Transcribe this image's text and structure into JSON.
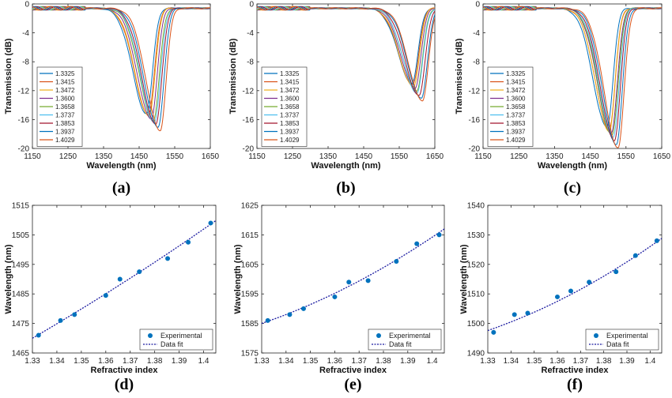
{
  "colors": [
    "#0072BD",
    "#D95319",
    "#EDB120",
    "#7E2F8E",
    "#77AC30",
    "#4DBEEE",
    "#A2142F",
    "#0072BD",
    "#D95319"
  ],
  "chart_data": [
    {
      "panel": "(a)",
      "type": "line",
      "xlabel": "Wavelength (nm)",
      "ylabel": "Transmission (dB)",
      "xlim": [
        1150,
        1650
      ],
      "ylim": [
        -20,
        0
      ],
      "xticks": [
        1150,
        1250,
        1350,
        1450,
        1550,
        1650
      ],
      "yticks": [
        0,
        -4,
        -8,
        -12,
        -16,
        -20
      ],
      "legend_position": "left",
      "series": [
        {
          "name": "1.3325",
          "min_wavelength": 1471,
          "min_db": -14.6
        },
        {
          "name": "1.3415",
          "min_wavelength": 1476,
          "min_db": -14.8
        },
        {
          "name": "1.3472",
          "min_wavelength": 1478,
          "min_db": -15.0
        },
        {
          "name": "1.3600",
          "min_wavelength": 1484,
          "min_db": -15.3
        },
        {
          "name": "1.3658",
          "min_wavelength": 1490,
          "min_db": -15.5
        },
        {
          "name": "1.3737",
          "min_wavelength": 1493,
          "min_db": -15.8
        },
        {
          "name": "1.3853",
          "min_wavelength": 1497,
          "min_db": -16.1
        },
        {
          "name": "1.3937",
          "min_wavelength": 1503,
          "min_db": -16.5
        },
        {
          "name": "1.4029",
          "min_wavelength": 1509,
          "min_db": -16.9
        }
      ]
    },
    {
      "panel": "(b)",
      "type": "line",
      "xlabel": "Wavelength (nm)",
      "ylabel": "Transmission (dB)",
      "xlim": [
        1150,
        1650
      ],
      "ylim": [
        -20,
        0
      ],
      "xticks": [
        1150,
        1250,
        1350,
        1450,
        1550,
        1650
      ],
      "yticks": [
        0,
        -4,
        -8,
        -12,
        -16,
        -20
      ],
      "legend_position": "left",
      "series": [
        {
          "name": "1.3325",
          "min_wavelength": 1586,
          "min_db": -10.4
        },
        {
          "name": "1.3415",
          "min_wavelength": 1588,
          "min_db": -10.6
        },
        {
          "name": "1.3472",
          "min_wavelength": 1590,
          "min_db": -10.9
        },
        {
          "name": "1.3600",
          "min_wavelength": 1594,
          "min_db": -11.1
        },
        {
          "name": "1.3658",
          "min_wavelength": 1599,
          "min_db": -11.4
        },
        {
          "name": "1.3737",
          "min_wavelength": 1600,
          "min_db": -11.7
        },
        {
          "name": "1.3853",
          "min_wavelength": 1606,
          "min_db": -12.1
        },
        {
          "name": "1.3937",
          "min_wavelength": 1612,
          "min_db": -12.5
        },
        {
          "name": "1.4029",
          "min_wavelength": 1615,
          "min_db": -12.8
        }
      ]
    },
    {
      "panel": "(c)",
      "type": "line",
      "xlabel": "Wavelength (nm)",
      "ylabel": "Transmission (dB)",
      "xlim": [
        1150,
        1650
      ],
      "ylim": [
        -20,
        0
      ],
      "xticks": [
        1150,
        1250,
        1350,
        1450,
        1550,
        1650
      ],
      "yticks": [
        0,
        -4,
        -8,
        -12,
        -16,
        -20
      ],
      "legend_position": "left",
      "series": [
        {
          "name": "1.3325",
          "min_wavelength": 1497,
          "min_db": -16.5
        },
        {
          "name": "1.3415",
          "min_wavelength": 1503,
          "min_db": -16.8
        },
        {
          "name": "1.3472",
          "min_wavelength": 1503.5,
          "min_db": -17.0
        },
        {
          "name": "1.3600",
          "min_wavelength": 1509,
          "min_db": -17.3
        },
        {
          "name": "1.3658",
          "min_wavelength": 1511,
          "min_db": -17.6
        },
        {
          "name": "1.3737",
          "min_wavelength": 1514,
          "min_db": -17.9
        },
        {
          "name": "1.3853",
          "min_wavelength": 1517.5,
          "min_db": -18.3
        },
        {
          "name": "1.3937",
          "min_wavelength": 1523,
          "min_db": -18.8
        },
        {
          "name": "1.4029",
          "min_wavelength": 1528,
          "min_db": -19.3
        }
      ]
    },
    {
      "panel": "(d)",
      "type": "scatter",
      "xlabel": "Refractive index",
      "ylabel": "Wavelength (nm)",
      "xlim": [
        1.33,
        1.405
      ],
      "ylim": [
        1465,
        1515
      ],
      "xticks": [
        1.33,
        1.34,
        1.35,
        1.36,
        1.37,
        1.38,
        1.39,
        1.4
      ],
      "yticks": [
        1465,
        1475,
        1485,
        1495,
        1505,
        1515
      ],
      "legend_position": "bottom-right",
      "series": [
        {
          "name": "Experimental",
          "x": [
            1.3325,
            1.3415,
            1.3472,
            1.36,
            1.3658,
            1.3737,
            1.3853,
            1.3937,
            1.4029
          ],
          "y": [
            1471,
            1476,
            1478,
            1484.5,
            1490,
            1492.5,
            1497,
            1502.5,
            1509
          ]
        },
        {
          "name": "Data fit",
          "x": [
            1.33,
            1.3675,
            1.405
          ],
          "y": [
            1470,
            1489,
            1509.8
          ]
        }
      ]
    },
    {
      "panel": "(e)",
      "type": "scatter",
      "xlabel": "Refractive index",
      "ylabel": "Wavelength (nm)",
      "xlim": [
        1.33,
        1.405
      ],
      "ylim": [
        1575,
        1625
      ],
      "xticks": [
        1.33,
        1.34,
        1.35,
        1.36,
        1.37,
        1.38,
        1.39,
        1.4
      ],
      "yticks": [
        1575,
        1585,
        1595,
        1605,
        1615,
        1625
      ],
      "legend_position": "bottom-right",
      "series": [
        {
          "name": "Experimental",
          "x": [
            1.3325,
            1.3415,
            1.3472,
            1.36,
            1.3658,
            1.3737,
            1.3853,
            1.3937,
            1.4029
          ],
          "y": [
            1586,
            1588,
            1590,
            1594,
            1599,
            1599.5,
            1606,
            1612,
            1615
          ]
        },
        {
          "name": "Data fit",
          "x": [
            1.33,
            1.3675,
            1.405
          ],
          "y": [
            1585,
            1598.3,
            1617
          ]
        }
      ]
    },
    {
      "panel": "(f)",
      "type": "scatter",
      "xlabel": "Refractive index",
      "ylabel": "Wavelength (nm)",
      "xlim": [
        1.33,
        1.405
      ],
      "ylim": [
        1490,
        1540
      ],
      "xticks": [
        1.33,
        1.34,
        1.35,
        1.36,
        1.37,
        1.38,
        1.39,
        1.4
      ],
      "yticks": [
        1490,
        1500,
        1510,
        1520,
        1530,
        1540
      ],
      "legend_position": "bottom-right",
      "series": [
        {
          "name": "Experimental",
          "x": [
            1.3325,
            1.3415,
            1.3472,
            1.36,
            1.3658,
            1.3737,
            1.3853,
            1.3937,
            1.4029
          ],
          "y": [
            1497,
            1503,
            1503.5,
            1509,
            1511,
            1514,
            1517.5,
            1523,
            1528
          ]
        },
        {
          "name": "Data fit",
          "x": [
            1.33,
            1.3675,
            1.405
          ],
          "y": [
            1497.6,
            1510.5,
            1528.8
          ]
        }
      ]
    }
  ]
}
